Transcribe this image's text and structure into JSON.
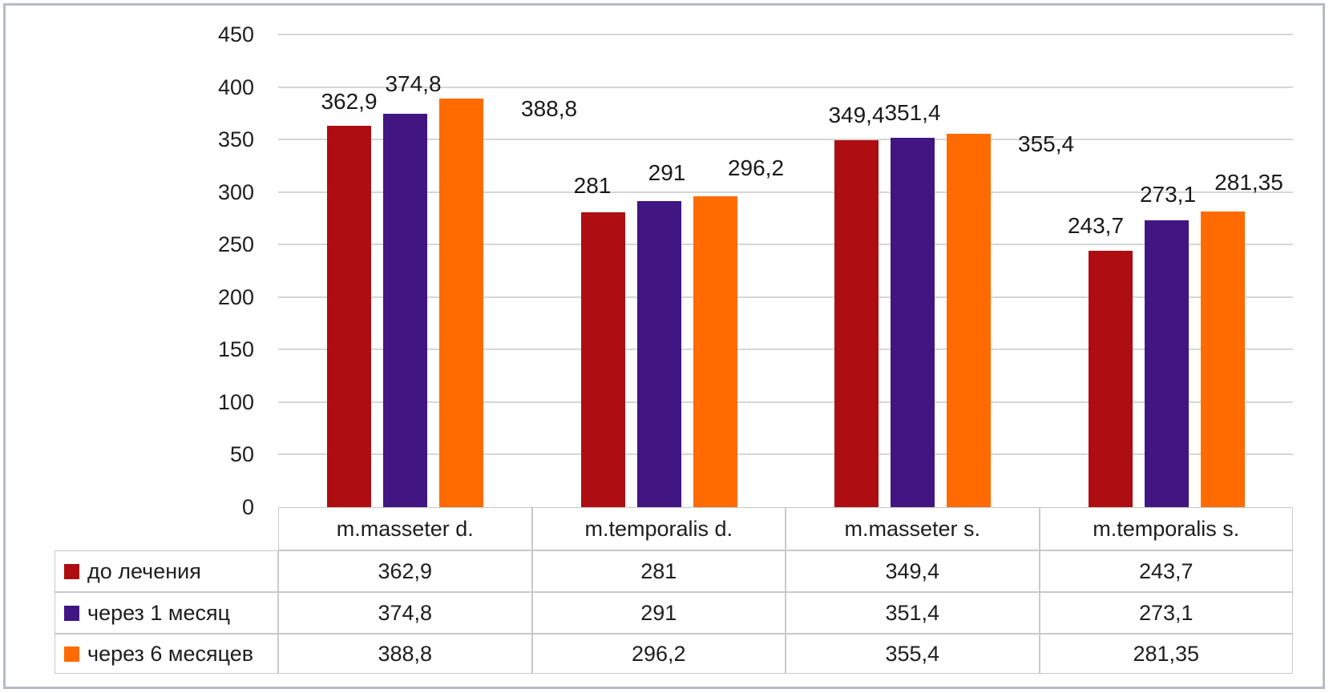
{
  "chart_data": {
    "type": "bar",
    "title": "",
    "xlabel": "",
    "ylabel": "",
    "categories": [
      "m.masseter d.",
      "m.temporalis d.",
      "m.masseter s.",
      "m.temporalis s."
    ],
    "series": [
      {
        "name": "до лечения",
        "color": "#ae0d11",
        "values": [
          362.9,
          281,
          349.4,
          243.7
        ]
      },
      {
        "name": "через 1 месяц",
        "color": "#411582",
        "values": [
          374.8,
          291,
          351.4,
          273.1
        ]
      },
      {
        "name": "через 6 месяцев",
        "color": "#ff6b00",
        "values": [
          388.8,
          296.2,
          355.4,
          281.35
        ]
      }
    ],
    "y_axis": {
      "min": 0,
      "max": 450,
      "step": 50,
      "tick_labels": [
        "0",
        "50",
        "100",
        "150",
        "200",
        "250",
        "300",
        "350",
        "400",
        "450"
      ]
    },
    "decimal_separator": ",",
    "grid": true,
    "legend_position": "table-left",
    "data_table_shown": true,
    "label_layout": {
      "series": [
        {
          "mode": [
            "above",
            "above",
            "above",
            "above"
          ],
          "dx": [
            0,
            -13,
            0,
            -18
          ],
          "dy": [
            -30,
            -33,
            -31,
            -31
          ]
        },
        {
          "mode": [
            "above",
            "above",
            "above",
            "above"
          ],
          "dx": [
            10,
            10,
            0,
            2
          ],
          "dy": [
            -37,
            -35,
            -31,
            -32
          ]
        },
        {
          "mode": [
            "side",
            "above",
            "side",
            "above"
          ],
          "dx": [
            47,
            51,
            34,
            33
          ],
          "dy": [
            13,
            -35,
            13,
            -36
          ]
        }
      ]
    }
  },
  "colors": {
    "gridline": "#d6d6d6",
    "table_border": "#c9c9c9",
    "frame_border": "#b6bcc6",
    "text": "#1e1e1e",
    "background": "#ffffff"
  }
}
